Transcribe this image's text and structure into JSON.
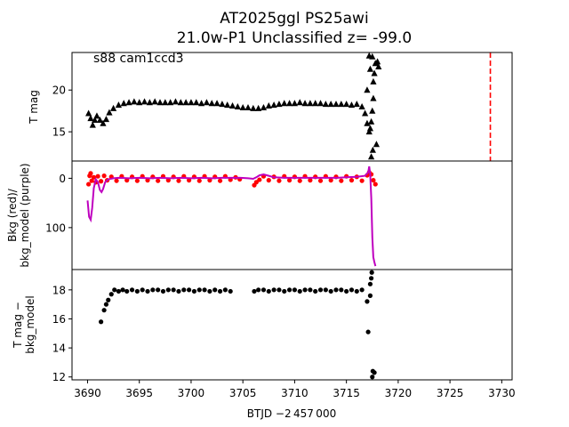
{
  "figure": {
    "title_line1": "AT2025ggl  PS25awi",
    "title_line2": "21.0w-P1 Unclassified z= -99.0",
    "annotation": "s88 cam1ccd3",
    "xlabel": "BTJD −2 457 000"
  },
  "chart_data": [
    {
      "type": "scatter",
      "panel": "top",
      "ylabel": "T mag",
      "y_inverted": true,
      "xlim": [
        3688.5,
        3731
      ],
      "ylim": [
        24.5,
        11.5
      ],
      "xticks": [
        3690,
        3695,
        3700,
        3705,
        3710,
        3715,
        3720,
        3725,
        3730
      ],
      "yticks": [
        15,
        20
      ],
      "vline": {
        "x": 3728.9,
        "color": "#ff0000",
        "style": "dashed"
      },
      "series": [
        {
          "marker": "triangle",
          "color": "#000000",
          "points": [
            [
              3690.1,
              17.2
            ],
            [
              3690.3,
              16.6
            ],
            [
              3690.5,
              15.8
            ],
            [
              3690.7,
              16.4
            ],
            [
              3690.9,
              16.9
            ],
            [
              3691.2,
              16.4
            ],
            [
              3691.5,
              16.0
            ],
            [
              3691.8,
              16.5
            ],
            [
              3692.1,
              17.3
            ],
            [
              3692.5,
              17.8
            ],
            [
              3693.0,
              18.2
            ],
            [
              3693.5,
              18.4
            ],
            [
              3694.0,
              18.5
            ],
            [
              3694.5,
              18.6
            ],
            [
              3695.0,
              18.5
            ],
            [
              3695.5,
              18.6
            ],
            [
              3696.0,
              18.5
            ],
            [
              3696.5,
              18.6
            ],
            [
              3697.0,
              18.5
            ],
            [
              3697.5,
              18.5
            ],
            [
              3698.0,
              18.5
            ],
            [
              3698.5,
              18.6
            ],
            [
              3699.0,
              18.5
            ],
            [
              3699.5,
              18.5
            ],
            [
              3700.0,
              18.5
            ],
            [
              3700.5,
              18.5
            ],
            [
              3701.0,
              18.4
            ],
            [
              3701.5,
              18.5
            ],
            [
              3702.0,
              18.4
            ],
            [
              3702.5,
              18.4
            ],
            [
              3703.0,
              18.3
            ],
            [
              3703.5,
              18.2
            ],
            [
              3704.0,
              18.1
            ],
            [
              3704.5,
              18.0
            ],
            [
              3705.0,
              17.9
            ],
            [
              3705.5,
              17.9
            ],
            [
              3706.0,
              17.8
            ],
            [
              3706.5,
              17.8
            ],
            [
              3707.0,
              17.9
            ],
            [
              3707.5,
              18.1
            ],
            [
              3708.0,
              18.2
            ],
            [
              3708.5,
              18.3
            ],
            [
              3709.0,
              18.4
            ],
            [
              3709.5,
              18.4
            ],
            [
              3710.0,
              18.4
            ],
            [
              3710.5,
              18.5
            ],
            [
              3711.0,
              18.4
            ],
            [
              3711.5,
              18.4
            ],
            [
              3712.0,
              18.4
            ],
            [
              3712.5,
              18.4
            ],
            [
              3713.0,
              18.3
            ],
            [
              3713.5,
              18.3
            ],
            [
              3714.0,
              18.3
            ],
            [
              3714.5,
              18.3
            ],
            [
              3715.0,
              18.3
            ],
            [
              3715.5,
              18.2
            ],
            [
              3716.0,
              18.3
            ],
            [
              3716.5,
              18.0
            ],
            [
              3716.8,
              17.2
            ],
            [
              3717.0,
              16.0
            ],
            [
              3717.2,
              15.0
            ],
            [
              3717.3,
              15.4
            ],
            [
              3717.4,
              16.2
            ],
            [
              3717.5,
              17.5
            ],
            [
              3717.6,
              19.0
            ],
            [
              3717.7,
              22.0
            ],
            [
              3717.8,
              23.2
            ],
            [
              3717.5,
              24.0
            ],
            [
              3717.2,
              24.1
            ],
            [
              3717.3,
              22.5
            ],
            [
              3718.0,
              23.4
            ],
            [
              3718.1,
              22.8
            ],
            [
              3717.6,
              21.0
            ],
            [
              3717.0,
              20.0
            ],
            [
              3717.4,
              12.0
            ],
            [
              3717.55,
              12.8
            ],
            [
              3717.9,
              13.5
            ]
          ]
        }
      ]
    },
    {
      "type": "line",
      "panel": "middle",
      "ylabel": "Bkg (red)/\nbkg_model (purple)",
      "xlim": [
        3688.5,
        3731
      ],
      "ylim": [
        -35,
        185
      ],
      "yticks": [
        0,
        100
      ],
      "series": [
        {
          "marker": "dot",
          "color": "#ff0000",
          "points": [
            [
              3690.1,
              12
            ],
            [
              3690.2,
              -5
            ],
            [
              3690.3,
              -10
            ],
            [
              3690.4,
              5
            ],
            [
              3690.6,
              -2
            ],
            [
              3690.8,
              8
            ],
            [
              3691.0,
              -4
            ],
            [
              3691.3,
              6
            ],
            [
              3691.6,
              -5
            ],
            [
              3691.9,
              4
            ],
            [
              3692.3,
              -3
            ],
            [
              3692.8,
              5
            ],
            [
              3693.3,
              -4
            ],
            [
              3693.8,
              4
            ],
            [
              3694.3,
              -3
            ],
            [
              3694.8,
              5
            ],
            [
              3695.3,
              -4
            ],
            [
              3695.8,
              4
            ],
            [
              3696.3,
              -3
            ],
            [
              3696.8,
              5
            ],
            [
              3697.3,
              -4
            ],
            [
              3697.8,
              4
            ],
            [
              3698.3,
              -3
            ],
            [
              3698.8,
              5
            ],
            [
              3699.3,
              -4
            ],
            [
              3699.8,
              4
            ],
            [
              3700.3,
              -3
            ],
            [
              3700.8,
              5
            ],
            [
              3701.3,
              -4
            ],
            [
              3701.8,
              4
            ],
            [
              3702.3,
              -3
            ],
            [
              3702.8,
              5
            ],
            [
              3703.3,
              -4
            ],
            [
              3703.8,
              3
            ],
            [
              3704.3,
              -2
            ],
            [
              3704.7,
              2
            ],
            [
              3706.1,
              14
            ],
            [
              3706.3,
              8
            ],
            [
              3706.6,
              3
            ],
            [
              3707.0,
              -4
            ],
            [
              3707.5,
              4
            ],
            [
              3708.0,
              -3
            ],
            [
              3708.5,
              5
            ],
            [
              3709.0,
              -4
            ],
            [
              3709.5,
              4
            ],
            [
              3710.0,
              -3
            ],
            [
              3710.5,
              5
            ],
            [
              3711.0,
              -4
            ],
            [
              3711.5,
              4
            ],
            [
              3712.0,
              -3
            ],
            [
              3712.5,
              5
            ],
            [
              3713.0,
              -4
            ],
            [
              3713.5,
              4
            ],
            [
              3714.0,
              -3
            ],
            [
              3714.5,
              5
            ],
            [
              3715.0,
              -4
            ],
            [
              3715.5,
              4
            ],
            [
              3716.0,
              -3
            ],
            [
              3716.5,
              5
            ],
            [
              3717.0,
              -6
            ],
            [
              3717.2,
              -12
            ],
            [
              3717.4,
              -8
            ],
            [
              3717.6,
              4
            ],
            [
              3717.8,
              12
            ]
          ]
        },
        {
          "marker": "line",
          "color": "#bf00bf",
          "points": [
            [
              3690.0,
              45
            ],
            [
              3690.15,
              78
            ],
            [
              3690.3,
              84
            ],
            [
              3690.45,
              60
            ],
            [
              3690.6,
              20
            ],
            [
              3690.8,
              2
            ],
            [
              3691.0,
              8
            ],
            [
              3691.2,
              24
            ],
            [
              3691.35,
              28
            ],
            [
              3691.5,
              22
            ],
            [
              3691.7,
              8
            ],
            [
              3692.0,
              2
            ],
            [
              3692.5,
              0
            ],
            [
              3693.0,
              -1
            ],
            [
              3694.0,
              0
            ],
            [
              3695.0,
              -1
            ],
            [
              3696.0,
              0
            ],
            [
              3697.0,
              -1
            ],
            [
              3698.0,
              0
            ],
            [
              3699.0,
              -1
            ],
            [
              3700.0,
              0
            ],
            [
              3701.0,
              -1
            ],
            [
              3702.0,
              0
            ],
            [
              3703.0,
              -1
            ],
            [
              3704.0,
              -1
            ],
            [
              3704.8,
              -1
            ],
            [
              3705.5,
              0
            ],
            [
              3706.0,
              1
            ],
            [
              3706.3,
              -2
            ],
            [
              3706.6,
              -6
            ],
            [
              3707.0,
              -8
            ],
            [
              3707.5,
              -5
            ],
            [
              3708.0,
              -2
            ],
            [
              3709.0,
              -1
            ],
            [
              3710.0,
              -1
            ],
            [
              3711.0,
              -1
            ],
            [
              3712.0,
              -1
            ],
            [
              3713.0,
              -1
            ],
            [
              3714.0,
              -1
            ],
            [
              3715.0,
              -2
            ],
            [
              3716.0,
              -3
            ],
            [
              3716.8,
              -5
            ],
            [
              3717.1,
              -12
            ],
            [
              3717.2,
              -24
            ],
            [
              3717.3,
              -8
            ],
            [
              3717.4,
              40
            ],
            [
              3717.5,
              120
            ],
            [
              3717.6,
              160
            ],
            [
              3717.7,
              170
            ],
            [
              3717.8,
              178
            ]
          ]
        }
      ]
    },
    {
      "type": "scatter",
      "panel": "bottom",
      "ylabel": "T mag −\nbkg_model",
      "y_inverted": true,
      "xlim": [
        3688.5,
        3731
      ],
      "ylim": [
        19.4,
        11.8
      ],
      "yticks": [
        12,
        14,
        16,
        18
      ],
      "series": [
        {
          "marker": "dot",
          "color": "#000000",
          "points": [
            [
              3691.3,
              15.8
            ],
            [
              3691.6,
              16.6
            ],
            [
              3691.8,
              17.0
            ],
            [
              3692.0,
              17.3
            ],
            [
              3692.3,
              17.7
            ],
            [
              3692.6,
              18.0
            ],
            [
              3693.0,
              17.9
            ],
            [
              3693.4,
              18.0
            ],
            [
              3693.8,
              17.9
            ],
            [
              3694.3,
              18.0
            ],
            [
              3694.8,
              17.9
            ],
            [
              3695.3,
              18.0
            ],
            [
              3695.8,
              17.9
            ],
            [
              3696.3,
              18.0
            ],
            [
              3696.8,
              18.0
            ],
            [
              3697.3,
              17.9
            ],
            [
              3697.8,
              18.0
            ],
            [
              3698.3,
              18.0
            ],
            [
              3698.8,
              17.9
            ],
            [
              3699.3,
              18.0
            ],
            [
              3699.8,
              18.0
            ],
            [
              3700.3,
              17.9
            ],
            [
              3700.8,
              18.0
            ],
            [
              3701.3,
              18.0
            ],
            [
              3701.8,
              17.9
            ],
            [
              3702.3,
              18.0
            ],
            [
              3702.8,
              17.9
            ],
            [
              3703.3,
              18.0
            ],
            [
              3703.8,
              17.9
            ],
            [
              3706.1,
              17.9
            ],
            [
              3706.5,
              18.0
            ],
            [
              3707.0,
              18.0
            ],
            [
              3707.5,
              17.9
            ],
            [
              3708.0,
              18.0
            ],
            [
              3708.5,
              18.0
            ],
            [
              3709.0,
              17.9
            ],
            [
              3709.5,
              18.0
            ],
            [
              3710.0,
              18.0
            ],
            [
              3710.5,
              17.9
            ],
            [
              3711.0,
              18.0
            ],
            [
              3711.5,
              18.0
            ],
            [
              3712.0,
              17.9
            ],
            [
              3712.5,
              18.0
            ],
            [
              3713.0,
              18.0
            ],
            [
              3713.5,
              17.9
            ],
            [
              3714.0,
              18.0
            ],
            [
              3714.5,
              18.0
            ],
            [
              3715.0,
              17.9
            ],
            [
              3715.5,
              18.0
            ],
            [
              3716.0,
              17.9
            ],
            [
              3716.5,
              18.0
            ],
            [
              3717.0,
              17.2
            ],
            [
              3717.1,
              15.1
            ],
            [
              3717.3,
              18.4
            ],
            [
              3717.4,
              18.8
            ],
            [
              3717.45,
              19.2
            ],
            [
              3717.5,
              12.0
            ],
            [
              3717.55,
              12.4
            ],
            [
              3717.7,
              12.3
            ],
            [
              3717.3,
              17.6
            ]
          ]
        }
      ]
    }
  ]
}
